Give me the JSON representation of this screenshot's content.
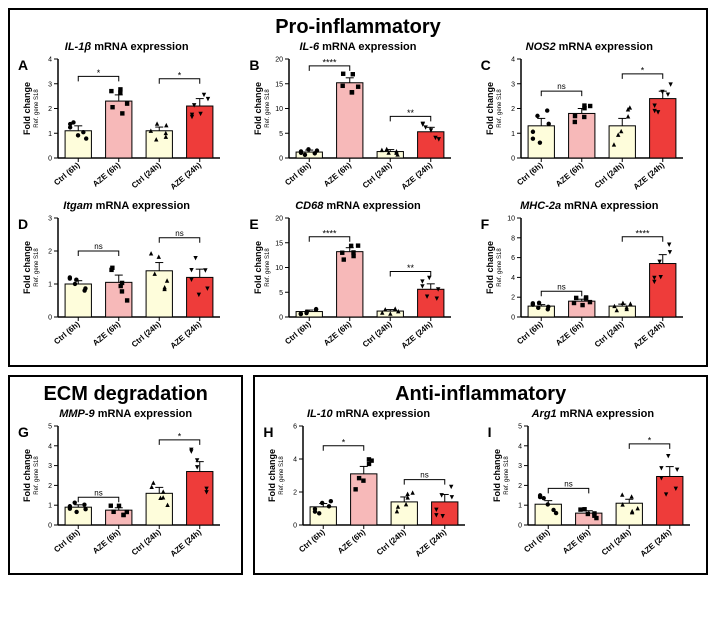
{
  "sections": {
    "pro": {
      "title": "Pro-inflammatory"
    },
    "ecm": {
      "title": "ECM degradation"
    },
    "anti": {
      "title": "Anti-inflammatory"
    }
  },
  "globals": {
    "ylabel_main": "Fold change",
    "ylabel_sub": "Ref. gene S18",
    "categories": [
      "Ctrl (6h)",
      "AZE (6h)",
      "Ctrl (24h)",
      "AZE (24h)"
    ],
    "bar_colors": [
      "#fefddb",
      "#f7b9b9",
      "#fefddb",
      "#ee3c3a"
    ],
    "n_points": 6,
    "axis_color": "#000000",
    "background": "#ffffff",
    "bar_edge": "#000000",
    "marker_colors": [
      "#000000",
      "#000000",
      "#000000",
      "#000000"
    ],
    "markers": [
      "circle",
      "square",
      "triangle",
      "invtriangle"
    ],
    "ylabel_main_fontsize": 9,
    "ylabel_sub_fontsize": 6,
    "xlabel_fontsize": 8,
    "tick_fontsize": 7,
    "panel_title_fontsize": 11,
    "panel_letter_fontsize": 14,
    "bar_width_rel": 0.65,
    "error_cap_width": 4
  },
  "panels": [
    {
      "id": "A",
      "section": "pro",
      "title_italic": "IL-1β",
      "title_rest": " mRNA expression",
      "type": "bar-scatter",
      "ylim": [
        0,
        4
      ],
      "ytick_step": 1,
      "means": [
        1.1,
        2.3,
        1.1,
        2.1
      ],
      "errors": [
        0.2,
        0.25,
        0.15,
        0.3
      ],
      "spread": [
        0.35,
        0.5,
        0.35,
        0.45
      ],
      "sig": [
        {
          "from": 0,
          "to": 1,
          "label": "*",
          "y": 3.3
        },
        {
          "from": 2,
          "to": 3,
          "label": "*",
          "y": 3.2
        }
      ]
    },
    {
      "id": "B",
      "section": "pro",
      "title_italic": "IL-6",
      "title_rest": " mRNA expression",
      "type": "bar-scatter",
      "ylim": [
        0,
        20
      ],
      "ytick_step": 5,
      "means": [
        1.2,
        15.2,
        1.3,
        5.3
      ],
      "errors": [
        0.4,
        1.0,
        0.4,
        0.9
      ],
      "spread": [
        0.6,
        2.0,
        0.6,
        1.6
      ],
      "sig": [
        {
          "from": 0,
          "to": 1,
          "label": "****",
          "y": 18.6
        },
        {
          "from": 2,
          "to": 3,
          "label": "**",
          "y": 8.4
        }
      ]
    },
    {
      "id": "C",
      "section": "pro",
      "title_italic": "NOS2",
      "title_rest": " mRNA expression",
      "type": "bar-scatter",
      "ylim": [
        0,
        4
      ],
      "ytick_step": 1,
      "means": [
        1.3,
        1.8,
        1.3,
        2.4
      ],
      "errors": [
        0.3,
        0.2,
        0.3,
        0.3
      ],
      "spread": [
        0.7,
        0.35,
        0.8,
        0.6
      ],
      "sig": [
        {
          "from": 0,
          "to": 1,
          "label": "ns",
          "y": 2.7
        },
        {
          "from": 2,
          "to": 3,
          "label": "*",
          "y": 3.4
        }
      ]
    },
    {
      "id": "D",
      "section": "pro",
      "title_italic": "Itgam",
      "title_rest": " mRNA expression",
      "type": "bar-scatter",
      "ylim": [
        0,
        3
      ],
      "ytick_step": 1,
      "means": [
        1.0,
        1.05,
        1.4,
        1.2
      ],
      "errors": [
        0.1,
        0.22,
        0.25,
        0.25
      ],
      "spread": [
        0.2,
        0.55,
        0.55,
        0.6
      ],
      "sig": [
        {
          "from": 0,
          "to": 1,
          "label": "ns",
          "y": 2.0
        },
        {
          "from": 2,
          "to": 3,
          "label": "ns",
          "y": 2.4
        }
      ]
    },
    {
      "id": "E",
      "section": "pro",
      "title_italic": "CD68",
      "title_rest": " mRNA expression",
      "type": "bar-scatter",
      "ylim": [
        0,
        20
      ],
      "ytick_step": 5,
      "means": [
        1.1,
        13.2,
        1.2,
        5.6
      ],
      "errors": [
        0.3,
        0.8,
        0.3,
        1.1
      ],
      "spread": [
        0.5,
        1.6,
        0.5,
        2.3
      ],
      "sig": [
        {
          "from": 0,
          "to": 1,
          "label": "****",
          "y": 16.2
        },
        {
          "from": 2,
          "to": 3,
          "label": "**",
          "y": 9.2
        }
      ]
    },
    {
      "id": "F",
      "section": "pro",
      "title_italic": "MHC-2a",
      "title_rest": " mRNA expression",
      "type": "bar-scatter",
      "ylim": [
        0,
        10
      ],
      "ytick_step": 2,
      "means": [
        1.1,
        1.6,
        1.1,
        5.4
      ],
      "errors": [
        0.15,
        0.2,
        0.2,
        0.9
      ],
      "spread": [
        0.35,
        0.4,
        0.4,
        1.9
      ],
      "sig": [
        {
          "from": 0,
          "to": 1,
          "label": "ns",
          "y": 2.6
        },
        {
          "from": 2,
          "to": 3,
          "label": "****",
          "y": 8.1
        }
      ]
    },
    {
      "id": "G",
      "section": "ecm",
      "title_italic": "MMP-9",
      "title_rest": " mRNA expression",
      "type": "bar-scatter",
      "ylim": [
        0,
        5
      ],
      "ytick_step": 1,
      "means": [
        0.9,
        0.75,
        1.6,
        2.7
      ],
      "errors": [
        0.12,
        0.12,
        0.3,
        0.5
      ],
      "spread": [
        0.25,
        0.25,
        0.6,
        1.1
      ],
      "sig": [
        {
          "from": 0,
          "to": 1,
          "label": "ns",
          "y": 1.4
        },
        {
          "from": 2,
          "to": 3,
          "label": "*",
          "y": 4.3
        }
      ]
    },
    {
      "id": "H",
      "section": "anti",
      "title_italic": "IL-10",
      "title_rest": " mRNA expression",
      "type": "bar-scatter",
      "ylim": [
        0,
        6
      ],
      "ytick_step": 2,
      "means": [
        1.1,
        3.1,
        1.4,
        1.4
      ],
      "errors": [
        0.2,
        0.45,
        0.3,
        0.45
      ],
      "spread": [
        0.4,
        0.95,
        0.6,
        0.95
      ],
      "sig": [
        {
          "from": 0,
          "to": 1,
          "label": "*",
          "y": 4.8
        },
        {
          "from": 2,
          "to": 3,
          "label": "ns",
          "y": 2.75
        }
      ]
    },
    {
      "id": "I",
      "section": "anti",
      "title_italic": "Arg1",
      "title_rest": " mRNA expression",
      "type": "bar-scatter",
      "ylim": [
        0,
        5
      ],
      "ytick_step": 1,
      "means": [
        1.05,
        0.6,
        1.1,
        2.45
      ],
      "errors": [
        0.18,
        0.12,
        0.2,
        0.5
      ],
      "spread": [
        0.45,
        0.25,
        0.45,
        1.05
      ],
      "sig": [
        {
          "from": 0,
          "to": 1,
          "label": "ns",
          "y": 1.85
        },
        {
          "from": 2,
          "to": 3,
          "label": "*",
          "y": 4.1
        }
      ]
    }
  ]
}
